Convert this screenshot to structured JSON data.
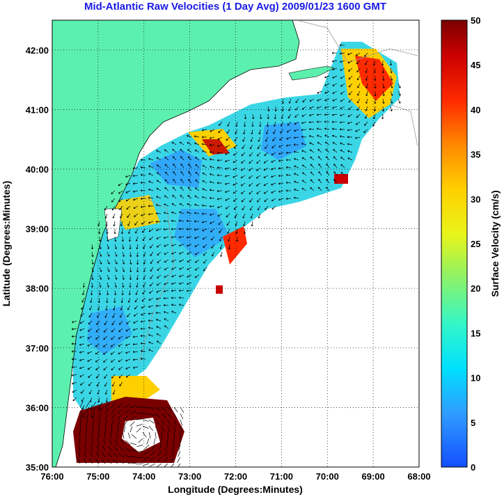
{
  "title": "Mid-Atlantic Raw Velocities (1 Day Avg) 2009/01/23 1600 GMT",
  "map": {
    "xlabel": "Longitude (Degrees:Minutes)",
    "ylabel": "Latitude (Degrees:Minutes)",
    "x_ticks": [
      "76:00",
      "75:00",
      "74:00",
      "73:00",
      "72:00",
      "71:00",
      "70:00",
      "69:00",
      "68:00"
    ],
    "y_ticks": [
      "35:00",
      "36:00",
      "37:00",
      "38:00",
      "39:00",
      "40:00",
      "41:00",
      "42:00"
    ],
    "lon_range": [
      -76,
      -68
    ],
    "lat_range": [
      35,
      42.5
    ],
    "land_color": "#5cf0ae",
    "grid": true
  },
  "colorbar": {
    "label": "Surface Velocity (cm/s)",
    "ticks": [
      "0",
      "5",
      "10",
      "15",
      "20",
      "25",
      "30",
      "35",
      "40",
      "45",
      "50"
    ],
    "range": [
      0,
      50
    ]
  }
}
